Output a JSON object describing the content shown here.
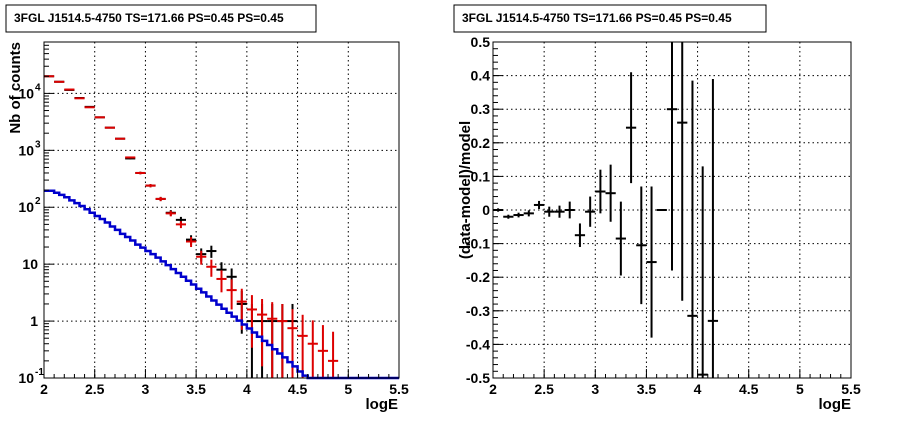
{
  "chart_data": [
    {
      "type": "scatter",
      "title": "3FGL J1514.5-4750 TS=171.66 PS=0.45 PS=0.45",
      "xlabel": "logE",
      "ylabel": "Nb of counts",
      "xlim": [
        2,
        5.5
      ],
      "ylim": [
        0.1,
        80000
      ],
      "yscale": "log",
      "grid": true,
      "x_ticks": [
        "2",
        "2.5",
        "3",
        "3.5",
        "4",
        "4.5",
        "5",
        "5.5"
      ],
      "y_ticks": [
        {
          "value": 0.1,
          "label": "10",
          "exp": "-1"
        },
        {
          "value": 1,
          "label": "1",
          "exp": ""
        },
        {
          "value": 10,
          "label": "10",
          "exp": ""
        },
        {
          "value": 100,
          "label": "10",
          "exp": "2"
        },
        {
          "value": 1000,
          "label": "10",
          "exp": "3"
        },
        {
          "value": 10000,
          "label": "10",
          "exp": "4"
        }
      ],
      "bin_width": 0.1,
      "series": [
        {
          "color": "#000000",
          "style": "errorbar",
          "x": [
            2.05,
            2.15,
            2.25,
            2.35,
            2.45,
            2.55,
            2.65,
            2.75,
            2.85,
            2.95,
            3.05,
            3.15,
            3.25,
            3.35,
            3.45,
            3.55,
            3.65,
            3.75,
            3.85,
            3.95,
            4.05,
            4.15,
            4.25,
            4.35,
            4.45
          ],
          "y": [
            20000,
            16000,
            11500,
            8300,
            5800,
            3800,
            2500,
            1600,
            720,
            400,
            240,
            140,
            80,
            60,
            27,
            15,
            17,
            8,
            6,
            2,
            1,
            1,
            1,
            1,
            1
          ],
          "err": [
            140,
            126,
            107,
            91,
            76,
            62,
            50,
            40,
            27,
            20,
            15.5,
            11.8,
            9,
            7.7,
            5.2,
            3.9,
            4.1,
            2.8,
            2.4,
            1.4,
            1,
            1,
            1,
            1,
            1
          ]
        },
        {
          "color": "#dd0000",
          "style": "errorbar",
          "x": [
            2.05,
            2.15,
            2.25,
            2.35,
            2.45,
            2.55,
            2.65,
            2.75,
            2.85,
            2.95,
            3.05,
            3.15,
            3.25,
            3.35,
            3.45,
            3.55,
            3.65,
            3.75,
            3.85,
            3.95,
            4.05,
            4.15,
            4.25,
            4.35,
            4.45,
            4.55,
            4.65,
            4.75,
            4.85
          ],
          "y": [
            20000,
            16000,
            11700,
            8200,
            5700,
            3800,
            2500,
            1600,
            750,
            400,
            240,
            140,
            78,
            50,
            25,
            13.5,
            9,
            5.5,
            3.5,
            2.2,
            1.6,
            1.3,
            1.1,
            1.0,
            0.75,
            0.55,
            0.4,
            0.3,
            0.2
          ],
          "err": [
            140,
            126,
            108,
            90,
            75,
            62,
            50,
            40,
            27,
            20,
            15.5,
            11.8,
            8.8,
            7,
            5,
            3.7,
            3,
            2.3,
            1.9,
            1.5,
            1.26,
            1.14,
            1.05,
            1,
            0.87,
            0.74,
            0.63,
            0.55,
            0.45
          ]
        },
        {
          "color": "#0000cc",
          "style": "step",
          "x": [
            2.0,
            2.05,
            2.1,
            2.15,
            2.2,
            2.25,
            2.3,
            2.35,
            2.4,
            2.45,
            2.5,
            2.55,
            2.6,
            2.65,
            2.7,
            2.75,
            2.8,
            2.85,
            2.9,
            2.95,
            3.0,
            3.05,
            3.1,
            3.15,
            3.2,
            3.25,
            3.3,
            3.35,
            3.4,
            3.45,
            3.5,
            3.55,
            3.6,
            3.65,
            3.7,
            3.75,
            3.8,
            3.85,
            3.9,
            3.95,
            4.0,
            4.05,
            4.1,
            4.15,
            4.2,
            4.25,
            4.3,
            4.35,
            4.4,
            4.45,
            4.5,
            4.55,
            4.6,
            4.65,
            4.7,
            4.75,
            4.8,
            4.85,
            4.9,
            4.95,
            5.0,
            5.05,
            5.1,
            5.15,
            5.2,
            5.25,
            5.3,
            5.35,
            5.4,
            5.45
          ],
          "y": [
            195,
            195,
            180,
            165,
            150,
            132,
            118,
            105,
            92,
            80,
            70,
            62,
            54,
            46,
            40,
            34,
            30,
            26,
            22,
            19.5,
            17,
            15,
            13,
            11.2,
            9.6,
            8.2,
            7,
            6,
            5.1,
            4.4,
            3.7,
            3.2,
            2.7,
            2.3,
            1.95,
            1.65,
            1.4,
            1.2,
            1.02,
            0.87,
            0.74,
            0.63,
            0.53,
            0.45,
            0.38,
            0.32,
            0.27,
            0.23,
            0.19,
            0.16,
            0.13,
            0.11,
            0.1,
            0.1,
            0.1,
            0.1,
            0.1,
            0.1,
            0.1,
            0.1,
            0.1,
            0.1,
            0.1,
            0.1,
            0.1,
            0.1,
            0.1,
            0.1,
            0.1,
            0.1
          ]
        }
      ]
    },
    {
      "type": "scatter",
      "title": "3FGL J1514.5-4750 TS=171.66 PS=0.45 PS=0.45",
      "xlabel": "logE",
      "ylabel": "(data-model)/model",
      "xlim": [
        2,
        5.5
      ],
      "ylim": [
        -0.5,
        0.5
      ],
      "grid": true,
      "x_ticks": [
        "2",
        "2.5",
        "3",
        "3.5",
        "4",
        "4.5",
        "5",
        "5.5"
      ],
      "y_ticks": [
        "-0.5",
        "-0.4",
        "-0.3",
        "-0.2",
        "-0.1",
        "0",
        "0.1",
        "0.2",
        "0.3",
        "0.4",
        "0.5"
      ],
      "bin_width": 0.1,
      "series": [
        {
          "color": "#000000",
          "style": "errorbar",
          "x": [
            2.05,
            2.15,
            2.25,
            2.35,
            2.45,
            2.55,
            2.65,
            2.75,
            2.85,
            2.95,
            3.05,
            3.15,
            3.25,
            3.35,
            3.45,
            3.55,
            3.65,
            3.75,
            3.85,
            3.95,
            4.05,
            4.15
          ],
          "y": [
            0.0,
            -0.02,
            -0.015,
            -0.01,
            0.015,
            -0.005,
            -0.005,
            0.0,
            -0.075,
            -0.005,
            0.055,
            0.05,
            -0.085,
            0.245,
            -0.105,
            -0.155,
            0.0,
            0.3,
            0.26,
            -0.315,
            -0.49,
            -0.33
          ],
          "err": [
            0.005,
            0.006,
            0.007,
            0.009,
            0.012,
            0.015,
            0.018,
            0.025,
            0.035,
            0.045,
            0.065,
            0.085,
            0.11,
            0.165,
            0.175,
            0.225,
            0.0,
            0.48,
            0.53,
            0.7,
            0.62,
            0.72
          ]
        }
      ]
    }
  ]
}
